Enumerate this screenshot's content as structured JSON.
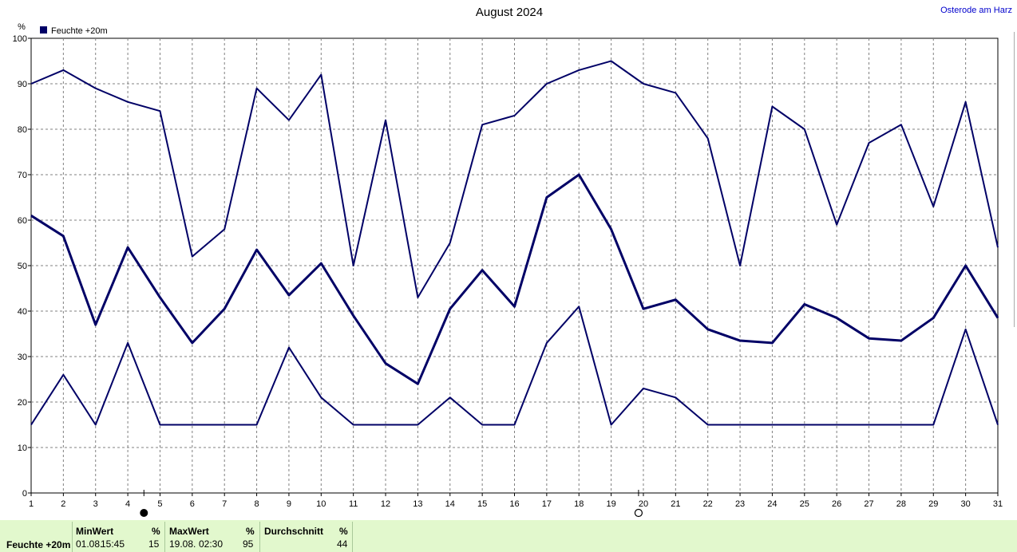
{
  "chart_data": {
    "type": "line",
    "title": "August 2024",
    "location": "Osterode am Harz",
    "ylabel": "%",
    "ylim": [
      0,
      100
    ],
    "yticks": [
      0,
      10,
      20,
      30,
      40,
      50,
      60,
      70,
      80,
      90,
      100
    ],
    "x": [
      1,
      2,
      3,
      4,
      5,
      6,
      7,
      8,
      9,
      10,
      11,
      12,
      13,
      14,
      15,
      16,
      17,
      18,
      19,
      20,
      21,
      22,
      23,
      24,
      25,
      26,
      27,
      28,
      29,
      30,
      31
    ],
    "grid": true,
    "legend": "top-left",
    "legend_label": "Feuchte +20m",
    "series": [
      {
        "name": "Max",
        "color": "#000066",
        "values": [
          90,
          93,
          89,
          86,
          84,
          52,
          58,
          89,
          82,
          92,
          50,
          82,
          43,
          55,
          81,
          83,
          90,
          93,
          95,
          90,
          88,
          78,
          50,
          85,
          80,
          59,
          77,
          81,
          63,
          86,
          54
        ]
      },
      {
        "name": "Durchschnitt",
        "color": "#000066",
        "values": [
          61,
          56.5,
          37,
          54,
          43,
          33,
          40.5,
          53.5,
          43.5,
          50.5,
          39,
          28.5,
          24,
          40.5,
          49,
          41,
          65,
          70,
          58,
          40.5,
          42.5,
          36,
          33.5,
          33,
          41.5,
          38.5,
          34,
          33.5,
          38.5,
          50,
          38.5
        ]
      },
      {
        "name": "Min",
        "color": "#000066",
        "values": [
          15,
          26,
          15,
          33,
          15,
          15,
          15,
          15,
          32,
          21,
          15,
          15,
          15,
          21,
          15,
          15,
          33,
          41,
          15,
          23,
          21,
          15,
          15,
          15,
          15,
          15,
          15,
          15,
          15,
          36,
          15
        ]
      }
    ],
    "markers": [
      {
        "x": 4.5,
        "symbol": "new-moon"
      },
      {
        "x": 19.85,
        "symbol": "full-moon"
      }
    ]
  },
  "footer": {
    "row_label": "Feuchte +20m",
    "min": {
      "header": "MinWert",
      "unit": "%",
      "date": "01.08.",
      "time": "15:45",
      "value": "15"
    },
    "max": {
      "header": "MaxWert",
      "unit": "%",
      "date": "19.08.",
      "time": "02:30",
      "value": "95"
    },
    "avg": {
      "header": "Durchschnitt",
      "unit": "%",
      "value": "44"
    }
  }
}
